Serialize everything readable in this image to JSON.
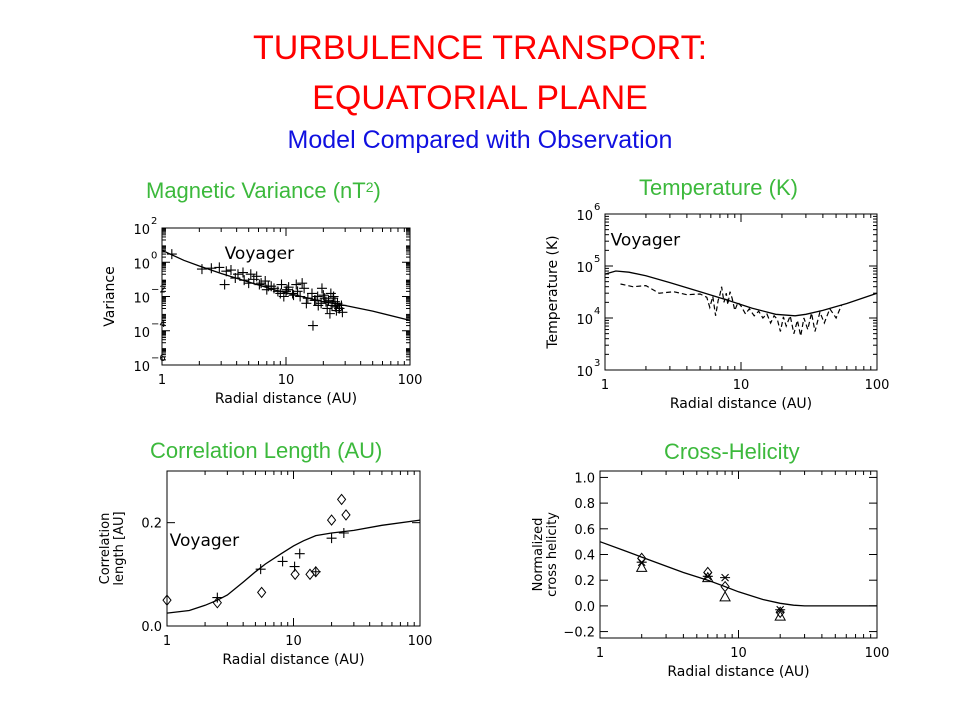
{
  "page": {
    "title_line1": "TURBULENCE TRANSPORT:",
    "title_line2": "EQUATORIAL PLANE",
    "subtitle": "Model Compared with Observation"
  },
  "colors": {
    "title": "#ff0000",
    "subtitle": "#1010e0",
    "panel_title": "#3cb93c"
  },
  "panels": {
    "variance": {
      "title": "Magnetic Variance (nT",
      "title_sup": "2",
      "title_end": ")"
    },
    "temperature": {
      "title": "Temperature (K)"
    },
    "corr": {
      "title": "Correlation Length (AU)"
    },
    "helicity": {
      "title": "Cross-Helicity"
    }
  },
  "chart_data": [
    {
      "id": "variance",
      "type": "scatter",
      "xlabel": "Radial distance (AU)",
      "ylabel": "Variance",
      "xscale": "log",
      "yscale": "log",
      "xlim": [
        1,
        100
      ],
      "ylim": [
        1e-06,
        100
      ],
      "xticks": [
        {
          "v": 1,
          "label": "1"
        },
        {
          "v": 10,
          "label": "10"
        },
        {
          "v": 100,
          "label": "100"
        }
      ],
      "yticks": [
        {
          "v": 1e-06,
          "base": "10",
          "exp": "−6"
        },
        {
          "v": 0.0001,
          "base": "10",
          "exp": "−4"
        },
        {
          "v": 0.01,
          "base": "10",
          "exp": "−2"
        },
        {
          "v": 1,
          "base": "10",
          "exp": "0"
        },
        {
          "v": 100,
          "base": "10",
          "exp": "2"
        }
      ],
      "annotation": {
        "text": "Voyager",
        "x": 3.2,
        "y": 1.5
      },
      "model": {
        "x": [
          1,
          1.5,
          2,
          3,
          5,
          8,
          12,
          20,
          30,
          50,
          100
        ],
        "y": [
          5,
          1.3,
          0.6,
          0.22,
          0.07,
          0.025,
          0.012,
          0.005,
          0.003,
          0.0014,
          0.0004
        ]
      },
      "series": [
        {
          "name": "Voyager",
          "marker": "plus",
          "x": [
            1.2,
            2.1,
            2.5,
            2.9,
            3.3,
            3.6,
            4.1,
            4.5,
            3.2,
            3.9,
            4.6,
            5.0,
            5.5,
            6.1,
            6.8,
            7.2,
            5.2,
            5.8,
            6.3,
            7.0,
            7.6,
            8.0,
            8.6,
            9.2,
            10.0,
            10.5,
            11.3,
            12.1,
            13.0,
            14.0,
            9.0,
            9.6,
            10.2,
            11.5,
            12.4,
            15.0,
            16.2,
            17.0,
            18.0,
            19.2,
            20.5,
            22.0,
            23.5,
            24.8,
            26.0,
            27.0,
            28.0,
            20.0,
            21.5,
            23.0,
            24.0,
            25.5,
            18.2,
            22.6,
            26.8,
            28.5,
            16.5,
            19.5,
            21.0,
            24.2,
            13.5,
            14.6,
            17.4,
            25.0
          ],
          "y": [
            3,
            0.4,
            0.45,
            0.5,
            0.3,
            0.35,
            0.2,
            0.25,
            0.05,
            0.12,
            0.09,
            0.06,
            0.1,
            0.05,
            0.08,
            0.04,
            0.2,
            0.15,
            0.06,
            0.025,
            0.04,
            0.03,
            0.02,
            0.05,
            0.02,
            0.035,
            0.015,
            0.05,
            0.01,
            0.03,
            0.015,
            0.01,
            0.025,
            0.012,
            0.02,
            0.008,
            0.015,
            0.006,
            0.01,
            0.004,
            0.008,
            0.006,
            0.003,
            0.005,
            0.004,
            0.002,
            0.003,
            0.012,
            0.002,
            0.015,
            0.008,
            0.0015,
            0.003,
            0.001,
            0.002,
            0.0012,
            0.0002,
            0.03,
            0.005,
            0.01,
            0.06,
            0.004,
            0.006,
            0.0025
          ]
        }
      ]
    },
    {
      "id": "temperature",
      "type": "line",
      "xlabel": "Radial distance (AU)",
      "ylabel": "Temperature (K)",
      "xscale": "log",
      "yscale": "log",
      "xlim": [
        1,
        100
      ],
      "ylim": [
        1000,
        1000000
      ],
      "xticks": [
        {
          "v": 1,
          "label": "1"
        },
        {
          "v": 10,
          "label": "10"
        },
        {
          "v": 100,
          "label": "100"
        }
      ],
      "yticks": [
        {
          "v": 1000,
          "base": "10",
          "exp": "3"
        },
        {
          "v": 10000,
          "base": "10",
          "exp": "4"
        },
        {
          "v": 100000,
          "base": "10",
          "exp": "5"
        },
        {
          "v": 1000000,
          "base": "10",
          "exp": "6"
        }
      ],
      "annotation": {
        "text": "Voyager",
        "x": 1.1,
        "y": 250000
      },
      "model": {
        "x": [
          1,
          1.2,
          1.5,
          2,
          3,
          5,
          8,
          12,
          18,
          25,
          30,
          40,
          60,
          100
        ],
        "y": [
          70000,
          80000,
          76000,
          65000,
          48000,
          32000,
          22000,
          15500,
          11800,
          11000,
          11800,
          14000,
          19000,
          30000
        ]
      },
      "series": [
        {
          "name": "Voyager",
          "style": "dashed",
          "x": [
            1.3,
            1.6,
            2.0,
            2.5,
            3.2,
            4.0,
            5.0,
            5.6,
            5.9,
            6.2,
            6.5,
            6.8,
            7.0,
            7.2,
            7.5,
            7.8,
            8.0,
            8.3,
            8.6,
            9.0,
            9.5,
            10.0,
            10.8,
            11.5,
            12.5,
            13.5,
            14.5,
            15.5,
            16.5,
            17.5,
            18.5,
            19.5,
            20.5,
            21.5,
            23.0,
            24.5,
            26.0,
            27.5,
            29.0,
            31.0,
            33.0,
            35.0,
            38.0,
            41.0,
            45.0,
            50.0,
            55.0
          ],
          "y": [
            45000,
            40000,
            42000,
            30000,
            32000,
            28000,
            29000,
            25000,
            16000,
            26000,
            11000,
            22000,
            28000,
            40000,
            20000,
            30000,
            18000,
            32000,
            24000,
            14000,
            20000,
            17000,
            12000,
            15000,
            11000,
            13500,
            10000,
            12000,
            8000,
            11000,
            9500,
            5500,
            10500,
            7000,
            11000,
            5000,
            9000,
            4500,
            10000,
            6000,
            12500,
            5500,
            13000,
            8000,
            15000,
            10000,
            18000
          ]
        }
      ]
    },
    {
      "id": "corr",
      "type": "scatter",
      "xlabel": "Radial distance (AU)",
      "ylabel_line1": "Correlation",
      "ylabel_line2": "length [AU]",
      "xscale": "log",
      "yscale": "linear",
      "xlim": [
        1,
        100
      ],
      "ylim": [
        0,
        0.3
      ],
      "xticks": [
        {
          "v": 1,
          "label": "1"
        },
        {
          "v": 10,
          "label": "10"
        },
        {
          "v": 100,
          "label": "100"
        }
      ],
      "yticks": [
        {
          "v": 0,
          "label": "0.0"
        },
        {
          "v": 0.2,
          "label": "0.2"
        }
      ],
      "annotation": {
        "text": "Voyager",
        "x": 1.05,
        "y": 0.155
      },
      "model": {
        "x": [
          1,
          1.5,
          2,
          2.5,
          3,
          4,
          5,
          6,
          8,
          10,
          12,
          15,
          20,
          30,
          50,
          100
        ],
        "y": [
          0.025,
          0.03,
          0.04,
          0.05,
          0.06,
          0.085,
          0.105,
          0.12,
          0.14,
          0.155,
          0.165,
          0.175,
          0.18,
          0.185,
          0.195,
          0.205
        ]
      },
      "series": [
        {
          "name": "diamonds",
          "marker": "diamond",
          "x": [
            1,
            2.5,
            5.6,
            10.3,
            13.5,
            15,
            20,
            24,
            26
          ],
          "y": [
            0.05,
            0.045,
            0.065,
            0.1,
            0.1,
            0.105,
            0.205,
            0.245,
            0.215
          ]
        },
        {
          "name": "plus",
          "marker": "plus",
          "x": [
            2.5,
            5.5,
            8.2,
            10.2,
            11.2,
            15,
            20,
            25
          ],
          "y": [
            0.055,
            0.11,
            0.125,
            0.115,
            0.14,
            0.105,
            0.17,
            0.18
          ]
        }
      ]
    },
    {
      "id": "helicity",
      "type": "scatter",
      "xlabel": "Radial distance (AU)",
      "ylabel_line1": "Normalized",
      "ylabel_line2": "cross helicity",
      "xscale": "log",
      "yscale": "linear",
      "xlim": [
        1,
        100
      ],
      "ylim": [
        -0.25,
        1.05
      ],
      "xticks": [
        {
          "v": 1,
          "label": "1"
        },
        {
          "v": 10,
          "label": "10"
        },
        {
          "v": 100,
          "label": "100"
        }
      ],
      "yticks": [
        {
          "v": -0.2,
          "label": "−0.2"
        },
        {
          "v": 0,
          "label": "0.0"
        },
        {
          "v": 0.2,
          "label": "0.2"
        },
        {
          "v": 0.4,
          "label": "0.4"
        },
        {
          "v": 0.6,
          "label": "0.6"
        },
        {
          "v": 0.8,
          "label": "0.8"
        },
        {
          "v": 1.0,
          "label": "1.0"
        }
      ],
      "model": {
        "x": [
          1,
          1.5,
          2,
          3,
          4,
          6,
          8,
          10,
          15,
          20,
          25,
          30,
          50,
          100
        ],
        "y": [
          0.5,
          0.43,
          0.38,
          0.31,
          0.26,
          0.2,
          0.15,
          0.11,
          0.05,
          0.02,
          0.005,
          0.0,
          0.0,
          0.0
        ]
      },
      "series": [
        {
          "name": "diamonds",
          "marker": "diamond",
          "x": [
            2,
            6,
            8,
            20
          ],
          "y": [
            0.37,
            0.26,
            0.15,
            -0.05
          ]
        },
        {
          "name": "triangles",
          "marker": "triangle",
          "x": [
            2,
            6,
            8,
            20
          ],
          "y": [
            0.3,
            0.22,
            0.07,
            -0.08
          ]
        },
        {
          "name": "stars",
          "marker": "star",
          "x": [
            2,
            6,
            8,
            20
          ],
          "y": [
            0.34,
            0.23,
            0.22,
            -0.03
          ]
        }
      ]
    }
  ]
}
